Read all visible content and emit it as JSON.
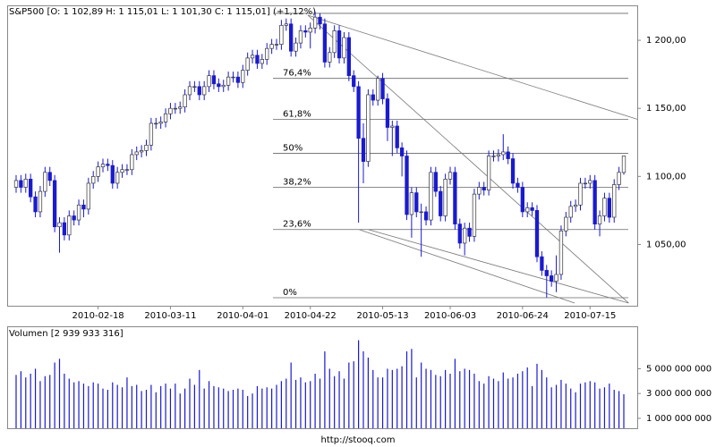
{
  "chart_data": [
    {
      "type": "candlestick",
      "title": "S&P500 [O: 1 102,89  H: 1 115,01  L: 1 101,30  C: 1 115,01] (+1,12%)",
      "categories": [
        null,
        null,
        null,
        null,
        null,
        null,
        null,
        null,
        null,
        null,
        null,
        null,
        null,
        null,
        null,
        null,
        null,
        "2010-02-18",
        null,
        null,
        null,
        null,
        null,
        null,
        null,
        null,
        null,
        null,
        null,
        null,
        null,
        null,
        "2010-03-11",
        null,
        null,
        null,
        null,
        null,
        null,
        null,
        null,
        null,
        null,
        null,
        null,
        null,
        null,
        "2010-04-01",
        null,
        null,
        null,
        null,
        null,
        null,
        null,
        null,
        null,
        null,
        null,
        null,
        null,
        "2010-04-22",
        null,
        null,
        null,
        null,
        null,
        null,
        null,
        null,
        null,
        null,
        null,
        null,
        null,
        null,
        "2010-05-13",
        null,
        null,
        null,
        null,
        null,
        null,
        null,
        null,
        null,
        null,
        null,
        null,
        null,
        "2010-06-03",
        null,
        null,
        null,
        null,
        null,
        null,
        null,
        null,
        null,
        null,
        null,
        null,
        null,
        null,
        "2010-06-24",
        null,
        null,
        null,
        null,
        null,
        null,
        null,
        null,
        null,
        null,
        null,
        null,
        null,
        "2010-07-15",
        null,
        null,
        null,
        null,
        null,
        null,
        null
      ],
      "open": [
        1092,
        1097,
        1092,
        1098,
        1085,
        1074,
        1089,
        1103,
        1097,
        1063,
        1066,
        1057,
        1071,
        1068,
        1079,
        1076,
        1095,
        1100,
        1107,
        1109,
        1108,
        1095,
        1103,
        1105,
        1105,
        1116,
        1118,
        1119,
        1123,
        1139,
        1139,
        1140,
        1146,
        1150,
        1150,
        1151,
        1160,
        1166,
        1166,
        1160,
        1166,
        1174,
        1168,
        1166,
        1167,
        1173,
        1173,
        1169,
        1178,
        1187,
        1189,
        1183,
        1186,
        1194,
        1197,
        1197,
        1211,
        1212,
        1192,
        1198,
        1207,
        1206,
        1209,
        1217,
        1212,
        1184,
        1191,
        1207,
        1187,
        1202,
        1174,
        1166,
        1128,
        1111,
        1160,
        1156,
        1172,
        1157,
        1136,
        1137,
        1121,
        1115,
        1072,
        1088,
        1074,
        1074,
        1068,
        1103,
        1089,
        1071,
        1098,
        1103,
        1065,
        1051,
        1062,
        1056,
        1087,
        1092,
        1090,
        1115,
        1115,
        1116,
        1118,
        1113,
        1095,
        1092,
        1074,
        1077,
        1075,
        1041,
        1031,
        1027,
        1023,
        1028,
        1060,
        1070,
        1078,
        1079,
        1095,
        1095,
        1097,
        1065,
        1071,
        1084,
        1070,
        1094,
        1102.89
      ],
      "high": [
        1101,
        1101,
        1102,
        1102,
        1089,
        1093,
        1107,
        1107,
        1101,
        1070,
        1070,
        1075,
        1075,
        1083,
        1083,
        1099,
        1104,
        1111,
        1113,
        1113,
        1112,
        1107,
        1109,
        1109,
        1120,
        1122,
        1123,
        1127,
        1143,
        1143,
        1144,
        1150,
        1154,
        1154,
        1155,
        1164,
        1170,
        1170,
        1170,
        1170,
        1178,
        1178,
        1172,
        1171,
        1177,
        1177,
        1177,
        1182,
        1191,
        1193,
        1193,
        1190,
        1198,
        1201,
        1201,
        1215,
        1216,
        1216,
        1202,
        1211,
        1211,
        1213,
        1221,
        1220,
        1216,
        1195,
        1211,
        1211,
        1206,
        1206,
        1178,
        1170,
        1139,
        1164,
        1164,
        1174,
        1176,
        1161,
        1141,
        1141,
        1125,
        1119,
        1092,
        1092,
        1080,
        1078,
        1107,
        1107,
        1093,
        1102,
        1107,
        1107,
        1069,
        1066,
        1066,
        1091,
        1096,
        1096,
        1119,
        1119,
        1120,
        1131,
        1122,
        1117,
        1099,
        1096,
        1081,
        1081,
        1079,
        1045,
        1035,
        1031,
        1042,
        1064,
        1074,
        1082,
        1083,
        1099,
        1099,
        1101,
        1101,
        1075,
        1088,
        1088,
        1098,
        1107,
        1115.01
      ],
      "low": [
        1088,
        1088,
        1088,
        1081,
        1070,
        1070,
        1085,
        1093,
        1059,
        1044,
        1053,
        1053,
        1064,
        1064,
        1070,
        1072,
        1091,
        1096,
        1103,
        1104,
        1091,
        1091,
        1099,
        1101,
        1101,
        1112,
        1114,
        1115,
        1119,
        1135,
        1135,
        1136,
        1142,
        1146,
        1146,
        1147,
        1156,
        1162,
        1156,
        1156,
        1162,
        1164,
        1162,
        1162,
        1163,
        1169,
        1165,
        1165,
        1174,
        1183,
        1179,
        1179,
        1182,
        1190,
        1193,
        1193,
        1207,
        1188,
        1188,
        1194,
        1202,
        1194,
        1205,
        1208,
        1180,
        1180,
        1187,
        1183,
        1183,
        1170,
        1162,
        1066,
        1095,
        1107,
        1152,
        1152,
        1153,
        1126,
        1115,
        1117,
        1100,
        1068,
        1055,
        1070,
        1041,
        1064,
        1064,
        1085,
        1067,
        1067,
        1094,
        1061,
        1047,
        1042,
        1052,
        1052,
        1083,
        1086,
        1086,
        1111,
        1111,
        1112,
        1109,
        1091,
        1088,
        1070,
        1070,
        1071,
        1037,
        1027,
        1011,
        1019,
        1015,
        1024,
        1056,
        1066,
        1074,
        1075,
        1091,
        1091,
        1061,
        1056,
        1067,
        1066,
        1066,
        1090,
        1101.3
      ],
      "close": [
        1097,
        1092,
        1098,
        1085,
        1074,
        1089,
        1103,
        1097,
        1063,
        1066,
        1057,
        1071,
        1068,
        1079,
        1076,
        1095,
        1100,
        1107,
        1109,
        1108,
        1095,
        1103,
        1105,
        1105,
        1116,
        1118,
        1119,
        1123,
        1139,
        1139,
        1140,
        1146,
        1150,
        1150,
        1151,
        1160,
        1166,
        1166,
        1160,
        1166,
        1174,
        1168,
        1166,
        1167,
        1173,
        1173,
        1169,
        1178,
        1187,
        1189,
        1183,
        1186,
        1194,
        1197,
        1197,
        1211,
        1212,
        1192,
        1198,
        1207,
        1206,
        1209,
        1217,
        1212,
        1184,
        1191,
        1207,
        1187,
        1202,
        1174,
        1166,
        1128,
        1111,
        1160,
        1156,
        1172,
        1157,
        1136,
        1137,
        1121,
        1115,
        1072,
        1088,
        1074,
        1074,
        1068,
        1103,
        1089,
        1071,
        1098,
        1103,
        1065,
        1051,
        1062,
        1056,
        1087,
        1092,
        1090,
        1115,
        1115,
        1116,
        1118,
        1113,
        1095,
        1092,
        1074,
        1077,
        1075,
        1041,
        1031,
        1027,
        1023,
        1028,
        1060,
        1070,
        1078,
        1079,
        1095,
        1095,
        1097,
        1065,
        1071,
        1084,
        1070,
        1094,
        1103,
        1115.01
      ],
      "color_up": "#ffffff",
      "color_down": "#1a1ad0",
      "ylim": [
        1005,
        1225
      ],
      "yticks": [
        {
          "value": 1050,
          "label": "1 050,00"
        },
        {
          "value": 1100,
          "label": "1 100,00"
        },
        {
          "value": 1150,
          "label": "1 150,00"
        },
        {
          "value": 1200,
          "label": "1 200,00"
        }
      ],
      "fib_levels": [
        1010.9,
        1061,
        1092,
        1117,
        1142,
        1172,
        1219.8
      ],
      "fib_labels": [
        "0%",
        "23,6%",
        "38,2%",
        "50%",
        "61,8%",
        "76,4%",
        null
      ],
      "trend_lines": [
        {
          "x": [
            60.5,
            129.2
          ],
          "y": [
            1218.4,
            1142
          ]
        },
        {
          "x": [
            60.5,
            127
          ],
          "y": [
            1218.4,
            1007
          ]
        },
        {
          "x": [
            71.1,
            115.8
          ],
          "y": [
            1061,
            1007
          ]
        },
        {
          "x": [
            73,
            127
          ],
          "y": [
            1061,
            1007
          ]
        }
      ]
    },
    {
      "type": "bar",
      "title": "Volumen [2 939 933 316]",
      "values": [
        4500000000.0,
        4800000000.0,
        4300000000.0,
        4600000000.0,
        5000000000.0,
        4000000000.0,
        4400000000.0,
        4500000000.0,
        5500000000.0,
        5800000000.0,
        4600000000.0,
        4200000000.0,
        3900000000.0,
        4000000000.0,
        3800000000.0,
        3600000000.0,
        3900000000.0,
        3800000000.0,
        3400000000.0,
        3300000000.0,
        3900000000.0,
        3700000000.0,
        3500000000.0,
        4300000000.0,
        3600000000.0,
        3700000000.0,
        3200000000.0,
        3300000000.0,
        3700000000.0,
        3100000000.0,
        3600000000.0,
        3800000000.0,
        3400000000.0,
        3800000000.0,
        3000000000.0,
        3400000000.0,
        4200000000.0,
        3700000000.0,
        4900000000.0,
        3400000000.0,
        4000000000.0,
        3600000000.0,
        3500000000.0,
        3400000000.0,
        3200000000.0,
        3300000000.0,
        3400000000.0,
        3300000000.0,
        2800000000.0,
        3000000000.0,
        3600000000.0,
        3400000000.0,
        3500000000.0,
        3400000000.0,
        3700000000.0,
        4000000000.0,
        4200000000.0,
        5500000000.0,
        4100000000.0,
        4300000000.0,
        3900000000.0,
        4000000000.0,
        4600000000.0,
        4200000000.0,
        6400000000.0,
        5000000000.0,
        4400000000.0,
        4800000000.0,
        4200000000.0,
        5500000000.0,
        5600000000.0,
        7300000000.0,
        6400000000.0,
        5900000000.0,
        4900000000.0,
        4300000000.0,
        4300000000.0,
        5000000000.0,
        4900000000.0,
        5000000000.0,
        5200000000.0,
        6400000000.0,
        6600000000.0,
        4300000000.0,
        5500000000.0,
        5000000000.0,
        4900000000.0,
        4500000000.0,
        4400000000.0,
        4900000000.0,
        4600000000.0,
        5800000000.0,
        4800000000.0,
        5000000000.0,
        4900000000.0,
        4600000000.0,
        4000000000.0,
        3800000000.0,
        4400000000.0,
        4200000000.0,
        4000000000.0,
        4700000000.0,
        4200000000.0,
        4300000000.0,
        4600000000.0,
        4800000000.0,
        5100000000.0,
        3600000000.0,
        5400000000.0,
        4900000000.0,
        4300000000.0,
        3500000000.0,
        3700000000.0,
        4100000000.0,
        3800000000.0,
        3400000000.0,
        3100000000.0,
        3800000000.0,
        3900000000.0,
        4000000000.0,
        3900000000.0,
        3400000000.0,
        3500000000.0,
        3800000000.0,
        3300000000.0,
        3200000000.0,
        2939933316
      ],
      "color": "#1a1ad0",
      "ylim": [
        200000000,
        8350000000
      ],
      "yticks": [
        {
          "value": 1000000000,
          "label": "1 000 000 000"
        },
        {
          "value": 3000000000,
          "label": "3 000 000 000"
        },
        {
          "value": 5000000000,
          "label": "5 000 000 000"
        }
      ]
    }
  ],
  "source": "http://stooq.com"
}
